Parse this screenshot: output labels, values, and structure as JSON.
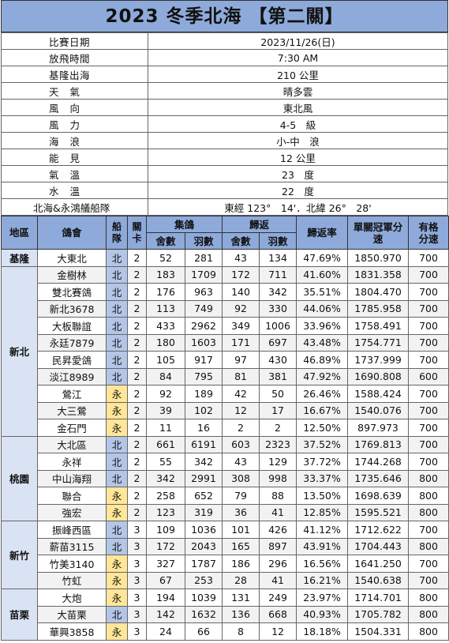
{
  "title": "2023 冬季北海 【第二關】",
  "info": [
    {
      "label": "比賽日期",
      "value": "2023/11/26(日)"
    },
    {
      "label": "放飛時間",
      "value": "7:30 AM"
    },
    {
      "label": "基隆出海",
      "value": "210 公里"
    },
    {
      "label": "天氣",
      "value": "晴多雲"
    },
    {
      "label": "風向",
      "value": "東北風"
    },
    {
      "label": "風力",
      "value": "4-5　級"
    },
    {
      "label": "海浪",
      "value": "小-中　浪"
    },
    {
      "label": "能見",
      "value": "12 公里"
    },
    {
      "label": "氣溫",
      "value": "23　度"
    },
    {
      "label": "水溫",
      "value": "22　度"
    },
    {
      "label": "北海&永鴻艤船隊",
      "value": "東經 123°　14'．北緯 26°　28'"
    }
  ],
  "header": {
    "region": "地區",
    "club": "鴿會",
    "team": "船隊",
    "stage": "關卡",
    "collect": "集鴿",
    "collect_shed": "舍數",
    "collect_birds": "羽數",
    "return": "歸返",
    "return_shed": "舍數",
    "return_birds": "羽數",
    "rate": "歸返率",
    "speed": "單關冠軍分速",
    "qual": "有格分速"
  },
  "regions": [
    {
      "name": "基隆",
      "rows": [
        {
          "club": "大東北",
          "team": "北",
          "stage": "2",
          "c_shed": "52",
          "c_birds": "281",
          "r_shed": "43",
          "r_birds": "134",
          "rate": "47.69%",
          "speed": "1850.970",
          "qual": "700"
        }
      ]
    },
    {
      "name": "新北",
      "rows": [
        {
          "club": "金樹林",
          "team": "北",
          "stage": "2",
          "c_shed": "183",
          "c_birds": "1709",
          "r_shed": "172",
          "r_birds": "711",
          "rate": "41.60%",
          "speed": "1831.358",
          "qual": "700"
        },
        {
          "club": "雙北賽鴿",
          "team": "北",
          "stage": "2",
          "c_shed": "176",
          "c_birds": "963",
          "r_shed": "140",
          "r_birds": "342",
          "rate": "35.51%",
          "speed": "1804.470",
          "qual": "700"
        },
        {
          "club": "新北3678",
          "team": "北",
          "stage": "2",
          "c_shed": "113",
          "c_birds": "749",
          "r_shed": "92",
          "r_birds": "330",
          "rate": "44.06%",
          "speed": "1785.958",
          "qual": "700"
        },
        {
          "club": "大板聯誼",
          "team": "北",
          "stage": "2",
          "c_shed": "433",
          "c_birds": "2962",
          "r_shed": "349",
          "r_birds": "1006",
          "rate": "33.96%",
          "speed": "1758.491",
          "qual": "700"
        },
        {
          "club": "永廷7879",
          "team": "北",
          "stage": "2",
          "c_shed": "180",
          "c_birds": "1603",
          "r_shed": "171",
          "r_birds": "697",
          "rate": "43.48%",
          "speed": "1754.771",
          "qual": "700"
        },
        {
          "club": "民昇愛鴿",
          "team": "北",
          "stage": "2",
          "c_shed": "105",
          "c_birds": "917",
          "r_shed": "97",
          "r_birds": "430",
          "rate": "46.89%",
          "speed": "1737.999",
          "qual": "700"
        },
        {
          "club": "淡江8989",
          "team": "北",
          "stage": "2",
          "c_shed": "84",
          "c_birds": "795",
          "r_shed": "81",
          "r_birds": "381",
          "rate": "47.92%",
          "speed": "1690.808",
          "qual": "600"
        },
        {
          "club": "鶯江",
          "team": "永",
          "stage": "2",
          "c_shed": "92",
          "c_birds": "189",
          "r_shed": "42",
          "r_birds": "50",
          "rate": "26.46%",
          "speed": "1588.424",
          "qual": "700"
        },
        {
          "club": "大三鶯",
          "team": "永",
          "stage": "2",
          "c_shed": "39",
          "c_birds": "102",
          "r_shed": "12",
          "r_birds": "17",
          "rate": "16.67%",
          "speed": "1540.076",
          "qual": "700"
        },
        {
          "club": "金石門",
          "team": "永",
          "stage": "2",
          "c_shed": "11",
          "c_birds": "16",
          "r_shed": "2",
          "r_birds": "2",
          "rate": "12.50%",
          "speed": "897.973",
          "qual": "700"
        }
      ]
    },
    {
      "name": "桃園",
      "rows": [
        {
          "club": "大北區",
          "team": "北",
          "stage": "2",
          "c_shed": "661",
          "c_birds": "6191",
          "r_shed": "603",
          "r_birds": "2323",
          "rate": "37.52%",
          "speed": "1769.813",
          "qual": "700"
        },
        {
          "club": "永祥",
          "team": "北",
          "stage": "2",
          "c_shed": "55",
          "c_birds": "342",
          "r_shed": "43",
          "r_birds": "129",
          "rate": "37.72%",
          "speed": "1744.268",
          "qual": "700"
        },
        {
          "club": "中山海翔",
          "team": "北",
          "stage": "2",
          "c_shed": "342",
          "c_birds": "2991",
          "r_shed": "308",
          "r_birds": "998",
          "rate": "33.37%",
          "speed": "1735.646",
          "qual": "800"
        },
        {
          "club": "聯合",
          "team": "永",
          "stage": "2",
          "c_shed": "258",
          "c_birds": "652",
          "r_shed": "79",
          "r_birds": "88",
          "rate": "13.50%",
          "speed": "1698.639",
          "qual": "800"
        },
        {
          "club": "強宏",
          "team": "永",
          "stage": "2",
          "c_shed": "123",
          "c_birds": "319",
          "r_shed": "36",
          "r_birds": "41",
          "rate": "12.85%",
          "speed": "1595.521",
          "qual": "800"
        }
      ]
    },
    {
      "name": "新竹",
      "rows": [
        {
          "club": "振峰西區",
          "team": "北",
          "stage": "3",
          "c_shed": "109",
          "c_birds": "1036",
          "r_shed": "101",
          "r_birds": "426",
          "rate": "41.12%",
          "speed": "1712.622",
          "qual": "700"
        },
        {
          "club": "薪苗3115",
          "team": "北",
          "stage": "3",
          "c_shed": "172",
          "c_birds": "2043",
          "r_shed": "165",
          "r_birds": "897",
          "rate": "43.91%",
          "speed": "1704.443",
          "qual": "800"
        },
        {
          "club": "竹美3140",
          "team": "永",
          "stage": "3",
          "c_shed": "327",
          "c_birds": "1787",
          "r_shed": "186",
          "r_birds": "296",
          "rate": "16.56%",
          "speed": "1641.250",
          "qual": "700"
        },
        {
          "club": "竹虹",
          "team": "永",
          "stage": "3",
          "c_shed": "67",
          "c_birds": "253",
          "r_shed": "28",
          "r_birds": "41",
          "rate": "16.21%",
          "speed": "1540.638",
          "qual": "700"
        }
      ]
    },
    {
      "name": "苗栗",
      "rows": [
        {
          "club": "大炮",
          "team": "永",
          "stage": "3",
          "c_shed": "194",
          "c_birds": "1039",
          "r_shed": "131",
          "r_birds": "249",
          "rate": "23.97%",
          "speed": "1714.701",
          "qual": "800"
        },
        {
          "club": "大苗栗",
          "team": "北",
          "stage": "3",
          "c_shed": "142",
          "c_birds": "1632",
          "r_shed": "136",
          "r_birds": "668",
          "rate": "40.93%",
          "speed": "1705.782",
          "qual": "800"
        },
        {
          "club": "華興3858",
          "team": "永",
          "stage": "3",
          "c_shed": "24",
          "c_birds": "66",
          "r_shed": "8",
          "r_birds": "12",
          "rate": "18.18%",
          "speed": "1504.331",
          "qual": "800"
        }
      ]
    }
  ]
}
